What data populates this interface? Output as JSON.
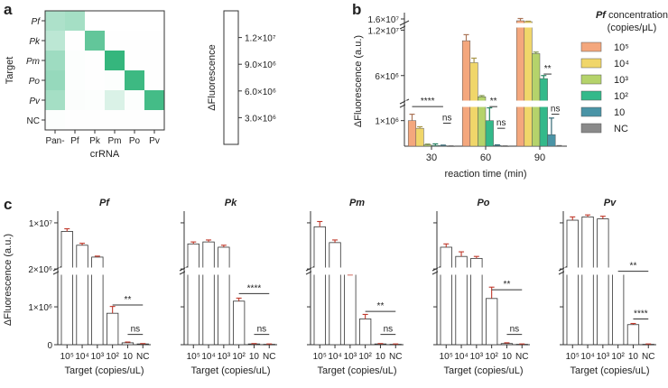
{
  "panel_letters": {
    "a": "a",
    "b": "b",
    "c": "c"
  },
  "chart_data": [
    {
      "type": "heatmap",
      "panel": "a",
      "title": "",
      "xlabel": "crRNA",
      "ylabel": "Target",
      "x": [
        "Pan-",
        "Pf",
        "Pk",
        "Pm",
        "Po",
        "Pv"
      ],
      "y": [
        "Pf",
        "Pk",
        "Pm",
        "Po",
        "Pv",
        "NC"
      ],
      "y_italic": [
        true,
        true,
        true,
        true,
        true,
        false
      ],
      "values": [
        [
          5500000.0,
          6000000.0,
          0,
          0,
          0,
          0
        ],
        [
          4500000.0,
          100000.0,
          10500000.0,
          100000.0,
          100000.0,
          100000.0
        ],
        [
          6500000.0,
          200000.0,
          100000.0,
          13500000.0,
          100000.0,
          100000.0
        ],
        [
          7000000.0,
          200000.0,
          100000.0,
          200000.0,
          13000000.0,
          100000.0
        ],
        [
          6000000.0,
          300000.0,
          200000.0,
          2500000.0,
          200000.0,
          12500000.0
        ],
        [
          200000.0,
          100000.0,
          100000.0,
          100000.0,
          100000.0,
          100000.0
        ]
      ],
      "colorbar": {
        "label": "ΔFluorescence",
        "range": [
          0,
          15000000.0
        ],
        "ticks": [
          3000000.0,
          6000000.0,
          9000000.0,
          12000000.0
        ],
        "tick_labels": [
          "3.0×10⁶",
          "6.0×10⁶",
          "9.0×10⁶",
          "1.2×10⁷"
        ],
        "color_low": "#ffffff",
        "color_high": "#1fae6f"
      }
    },
    {
      "type": "bar",
      "panel": "b",
      "xlabel": "reaction time (min)",
      "ylabel": "ΔFluorescence (a.u.)",
      "categories": [
        "30",
        "60",
        "90"
      ],
      "y_ticks": [
        {
          "v": 1000000.0,
          "label": "1×10⁶"
        },
        {
          "v": 6000000.0,
          "label": "6×10⁶"
        },
        {
          "v": 12000000.0,
          "label": "1.2×10⁷"
        },
        {
          "v": 16000000.0,
          "label": "1.6×10⁷"
        }
      ],
      "axis_segments": [
        {
          "range": [
            0,
            1800000.0
          ]
        },
        {
          "range": [
            1800000.0,
            13000000.0
          ]
        },
        {
          "range": [
            15000000.0,
            16500000.0
          ]
        }
      ],
      "legend": {
        "title_italic": "Pf",
        "title_rest": " concentration",
        "subtitle": "(copies/μL)",
        "position": "right"
      },
      "series": [
        {
          "name": "10⁵",
          "color": "#f4a77d",
          "values": [
            1000000.0,
            10600000.0,
            15800000.0
          ],
          "errors": [
            250000.0,
            800000.0,
            250000.0
          ]
        },
        {
          "name": "10⁴",
          "color": "#f0d66a",
          "values": [
            700000.0,
            7700000.0,
            15700000.0
          ],
          "errors": [
            60000.0,
            600000.0,
            50000.0
          ]
        },
        {
          "name": "10³",
          "color": "#b5d36b",
          "values": [
            50000.0,
            3200000.0,
            8900000.0
          ],
          "errors": [
            30000.0,
            150000.0,
            200000.0
          ]
        },
        {
          "name": "10²",
          "color": "#33b98a",
          "values": [
            30000.0,
            1000000.0,
            5600000.0
          ],
          "errors": [
            60000.0,
            500000.0,
            400000.0
          ]
        },
        {
          "name": "10",
          "color": "#4a94a6",
          "values": [
            20000.0,
            30000.0,
            450000.0
          ],
          "errors": [
            20000.0,
            20000.0,
            650000.0
          ]
        },
        {
          "name": "NC",
          "color": "#8a8a8a",
          "values": [
            5000.0,
            5000.0,
            10000.0
          ],
          "errors": [
            5000.0,
            5000.0,
            10000.0
          ]
        }
      ],
      "annotations": [
        {
          "cat": 0,
          "from": 0,
          "to": 4,
          "y": 1550000.0,
          "text": "****"
        },
        {
          "cat": 0,
          "from": 4,
          "to": 5,
          "y": 900000.0,
          "text": "ns"
        },
        {
          "cat": 1,
          "from": 3,
          "to": 4,
          "y": 1900000.0,
          "text": "**"
        },
        {
          "cat": 1,
          "from": 4,
          "to": 5,
          "y": 700000.0,
          "text": "ns"
        },
        {
          "cat": 2,
          "from": 3,
          "to": 4,
          "y": 6200000.0,
          "text": "**"
        },
        {
          "cat": 2,
          "from": 4,
          "to": 5,
          "y": 1250000.0,
          "text": "ns"
        }
      ]
    },
    {
      "type": "bar",
      "panel": "c",
      "ylabel": "ΔFluorescence (a.u.)",
      "xlabel": "Target (copies/uL)",
      "categories": [
        "10⁵",
        "10⁴",
        "10³",
        "10²",
        "10",
        "NC"
      ],
      "y_ticks": [
        {
          "v": 0,
          "label": "0"
        },
        {
          "v": 1000000.0,
          "label": "1×10⁶"
        },
        {
          "v": 2000000.0,
          "label": "2×10⁶"
        },
        {
          "v": 10000000.0,
          "label": "1×10⁷"
        }
      ],
      "axis_segments": [
        {
          "range": [
            0,
            2050000.0
          ]
        },
        {
          "range": [
            2050000.0,
            11500000.0
          ]
        }
      ],
      "subplots": [
        {
          "title": "Pf",
          "values": [
            8700000.0,
            6600000.0,
            4800000.0,
            830000.0,
            50000.0,
            20000.0
          ],
          "errors": [
            400000.0,
            300000.0,
            150000.0,
            180000.0,
            20000.0,
            10000.0
          ],
          "annotations": [
            {
              "from": 3,
              "to": 5,
              "y": 1050000.0,
              "text": "**"
            },
            {
              "from": 4,
              "to": 5,
              "y": 270000.0,
              "text": "ns"
            }
          ]
        },
        {
          "title": "Pk",
          "values": [
            6800000.0,
            7100000.0,
            6300000.0,
            1150000.0,
            20000.0,
            10000.0
          ],
          "errors": [
            300000.0,
            300000.0,
            300000.0,
            80000.0,
            10000.0,
            10000.0
          ],
          "annotations": [
            {
              "from": 3,
              "to": 5,
              "y": 1350000.0,
              "text": "****"
            },
            {
              "from": 4,
              "to": 5,
              "y": 270000.0,
              "text": "ns"
            }
          ]
        },
        {
          "title": "Pm",
          "values": [
            9400000.0,
            7000000.0,
            1970000.0,
            680000.0,
            20000.0,
            10000.0
          ],
          "errors": [
            800000.0,
            400000.0,
            120000.0,
            120000.0,
            10000.0,
            10000.0
          ],
          "annotations": [
            {
              "from": 3,
              "to": 5,
              "y": 880000.0,
              "text": "**"
            },
            {
              "from": 4,
              "to": 5,
              "y": 270000.0,
              "text": "ns"
            }
          ]
        },
        {
          "title": "Po",
          "values": [
            6300000.0,
            4900000.0,
            4600000.0,
            1220000.0,
            30000.0,
            10000.0
          ],
          "errors": [
            500000.0,
            700000.0,
            300000.0,
            300000.0,
            20000.0,
            10000.0
          ],
          "annotations": [
            {
              "from": 3,
              "to": 5,
              "y": 1450000.0,
              "text": "**"
            },
            {
              "from": 4,
              "to": 5,
              "y": 270000.0,
              "text": "ns"
            }
          ]
        },
        {
          "title": "Pv",
          "values": [
            10400000.0,
            10900000.0,
            10600000.0,
            2220000.0,
            530000.0,
            10000.0
          ],
          "errors": [
            500000.0,
            300000.0,
            400000.0,
            50000.0,
            30000.0,
            10000.0
          ],
          "annotations": [
            {
              "from": 3,
              "to": 5,
              "y": 2650000.0,
              "text": "**"
            },
            {
              "from": 4,
              "to": 5,
              "y": 680000.0,
              "text": "****"
            }
          ]
        }
      ]
    }
  ]
}
